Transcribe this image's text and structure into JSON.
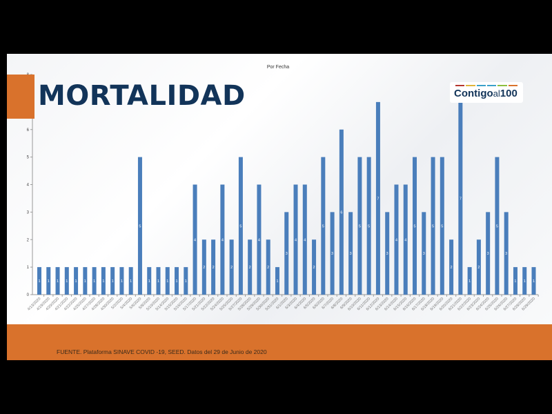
{
  "slide_title": "MORTALIDAD",
  "logo": {
    "text_main": "Contigo",
    "text_al": "al",
    "text_num": "100",
    "stripe_colors": [
      "#b5362f",
      "#e0b43a",
      "#3aa0c9",
      "#3aa0c9",
      "#8cbf3f",
      "#d9722c"
    ]
  },
  "footer": {
    "source": "FUENTE. Plataforma SINAVE COVID -19, SEED. Datos del 29 de Junio de 2020"
  },
  "colors": {
    "bar": "#4a7ebb",
    "accent": "#d9722c",
    "title": "#123459"
  },
  "chart_data": {
    "type": "bar",
    "title": "Por Fecha",
    "xlabel": "",
    "ylabel": "",
    "ylim": [
      0,
      8
    ],
    "yticks": [
      0,
      1,
      2,
      3,
      4,
      5,
      6,
      7,
      8
    ],
    "grid": false,
    "data_labels": true,
    "categories": [
      "4/13/2020",
      "4/19/2020",
      "4/20/2020",
      "4/21/2020",
      "4/22/2020",
      "4/25/2020",
      "4/27/2020",
      "4/28/2020",
      "4/30/2020",
      "5/2/2020",
      "5/4/2020",
      "5/6/2020",
      "5/8/2020",
      "5/10/2020",
      "5/14/2020",
      "5/15/2020",
      "5/16/2020",
      "5/17/2020",
      "5/21/2020",
      "5/22/2020",
      "5/24/2020",
      "5/25/2020",
      "5/27/2020",
      "5/28/2020",
      "5/29/2020",
      "5/30/2020",
      "5/31/2020",
      "6/1/2020",
      "6/3/2020",
      "6/4/2020",
      "6/5/2020",
      "6/6/2020",
      "6/7/2020",
      "6/8/2020",
      "6/9/2020",
      "6/10/2020",
      "6/11/2020",
      "6/12/2020",
      "6/13/2020",
      "6/14/2020",
      "6/15/2020",
      "6/16/2020",
      "6/17/2020",
      "6/18/2020",
      "6/19/2020",
      "6/20/2020",
      "6/21/2020",
      "6/22/2020",
      "6/23/2020",
      "6/24/2020",
      "6/25/2020",
      "6/26/2020",
      "6/27/2020",
      "6/28/2020",
      "6/29/2020"
    ],
    "values": [
      1,
      1,
      1,
      1,
      1,
      1,
      1,
      1,
      1,
      1,
      1,
      5,
      1,
      1,
      1,
      1,
      1,
      4,
      2,
      2,
      4,
      2,
      5,
      2,
      4,
      2,
      1,
      3,
      4,
      4,
      2,
      5,
      3,
      6,
      3,
      5,
      5,
      7,
      3,
      4,
      4,
      5,
      3,
      5,
      5,
      2,
      7,
      1,
      2,
      3,
      5,
      3,
      1,
      1,
      1
    ]
  }
}
